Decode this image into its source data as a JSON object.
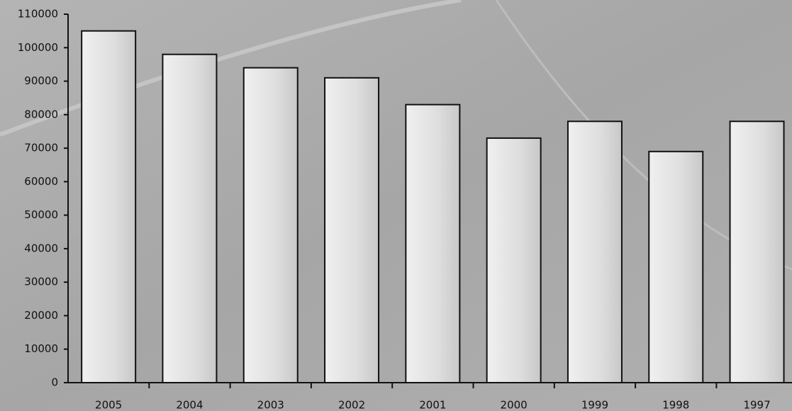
{
  "chart_data": {
    "type": "bar",
    "categories": [
      "2005",
      "2004",
      "2003",
      "2002",
      "2001",
      "2000",
      "1999",
      "1998",
      "1997"
    ],
    "values": [
      105000,
      98000,
      94000,
      91000,
      83000,
      73000,
      78000,
      69000,
      78000
    ],
    "color": "#e4e4e4",
    "ylim": [
      0,
      110000
    ],
    "yticks": [
      0,
      10000,
      20000,
      30000,
      40000,
      50000,
      60000,
      70000,
      80000,
      90000,
      100000,
      110000
    ]
  }
}
